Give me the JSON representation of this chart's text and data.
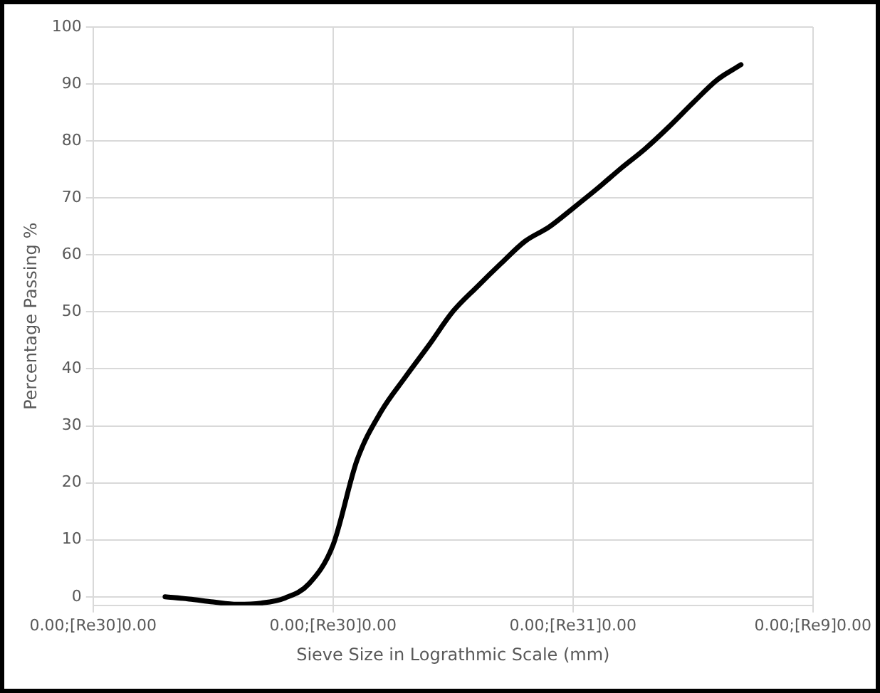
{
  "chart_data": {
    "type": "line",
    "xlabel": "Sieve Size in Lograthmic Scale (mm)",
    "ylabel": "Percentage Passing %",
    "grid": true,
    "marker": "none",
    "line_style": "solid",
    "categories": [
      "0.00;[Re30]0.00",
      null,
      null,
      null,
      null,
      null,
      null,
      null,
      null,
      null,
      "0.00;[Re30]0.00",
      null,
      null,
      null,
      null,
      null,
      null,
      null,
      null,
      null,
      "0.00;[Re31]0.00",
      null,
      null,
      null,
      null,
      null,
      null,
      null,
      null,
      null,
      "0.00;[Re9]0.00"
    ],
    "series": [
      {
        "color": "#000000",
        "values": [
          null,
          null,
          null,
          0,
          -0.4,
          -0.9,
          -1.3,
          -1.1,
          -0.2,
          2.3,
          9.1,
          24,
          32.5,
          38.5,
          44.2,
          50.1,
          54.4,
          58.5,
          62.4,
          64.9,
          68.2,
          71.6,
          75.2,
          78.6,
          82.5,
          86.7,
          90.7,
          93.4,
          null,
          null,
          null
        ]
      }
    ],
    "ylim": [
      -1.5,
      100
    ],
    "yticks": [
      0,
      10,
      20,
      30,
      40,
      50,
      60,
      70,
      80,
      90,
      100
    ]
  }
}
